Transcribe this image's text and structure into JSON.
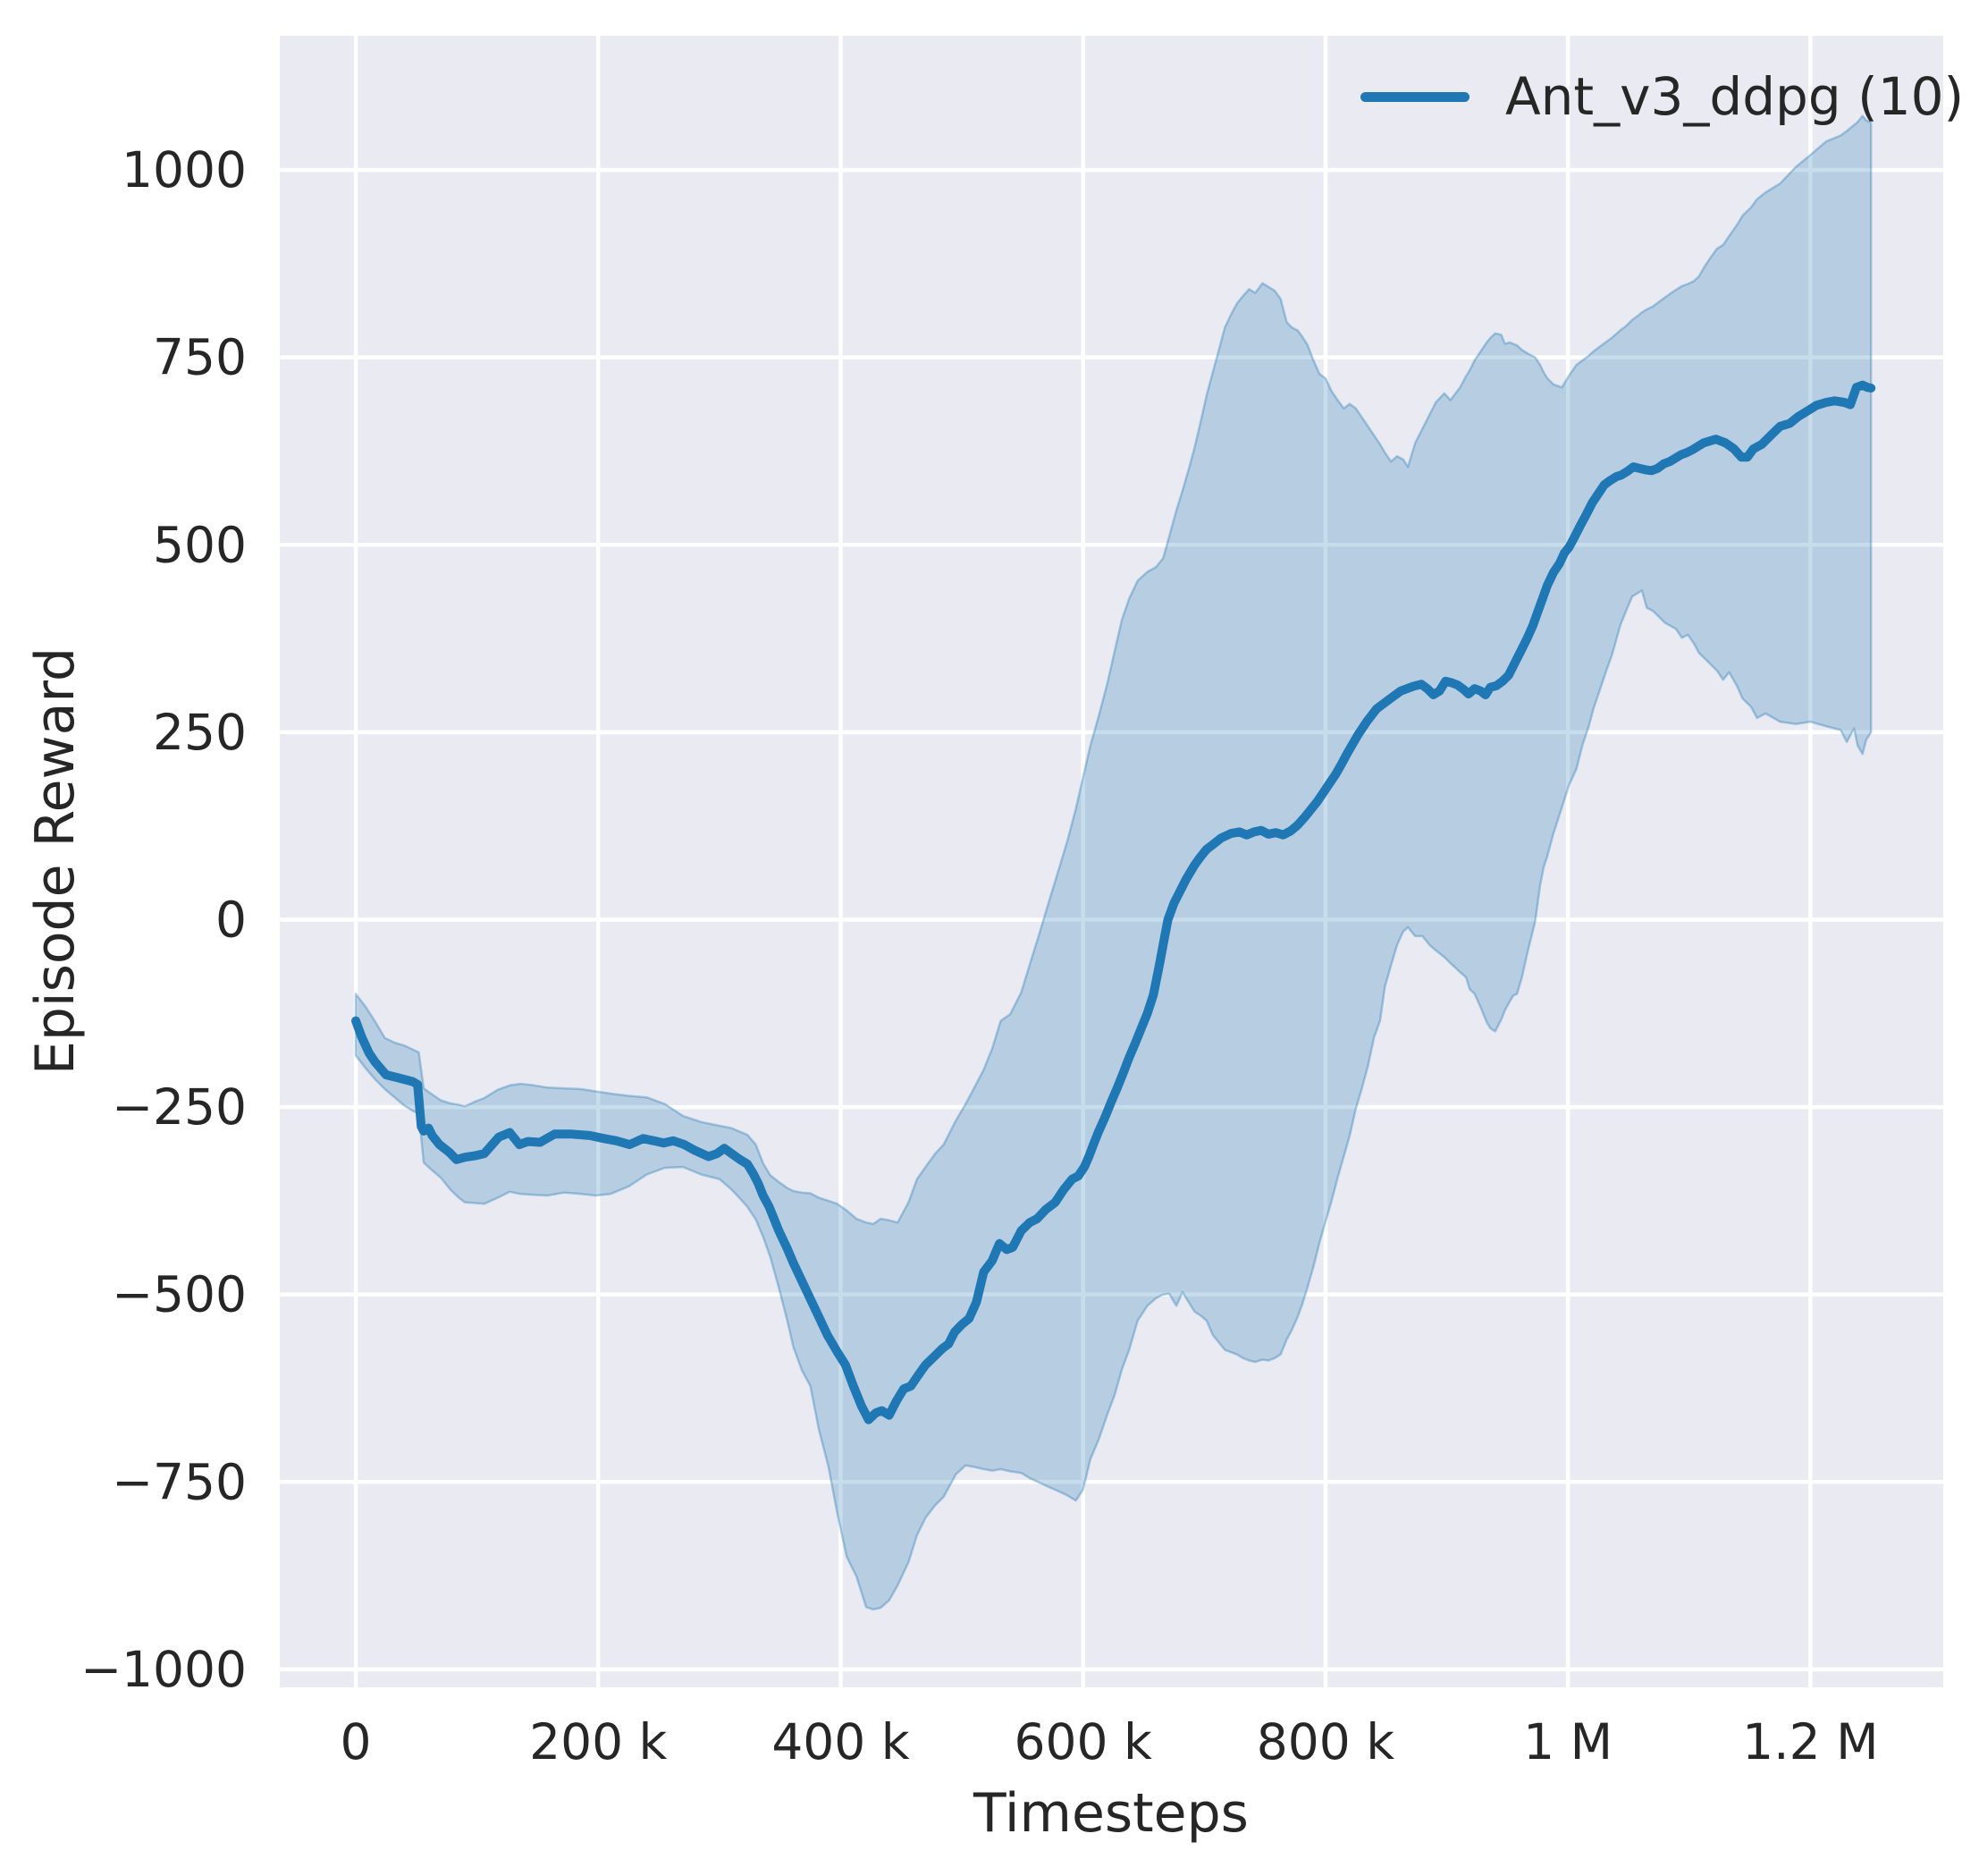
{
  "axes": {
    "xlabel": "Timesteps",
    "ylabel": "Episode Reward"
  },
  "legend": {
    "label": "Ant_v3_ddpg (10)"
  },
  "colors": {
    "figure_bg": "#ffffff",
    "plot_bg": "#eaeaf2",
    "grid": "#ffffff",
    "text": "#262626",
    "line": "#1f77b4",
    "band_fill": "rgba(31,119,180,0.25)",
    "band_edge": "rgba(31,119,180,0.35)"
  },
  "chart_data": {
    "type": "line",
    "title": "",
    "xlabel": "Timesteps",
    "ylabel": "Episode Reward",
    "grid": true,
    "legend_position": "upper right",
    "legend_entries": [
      "Ant_v3_ddpg (10)"
    ],
    "xlim": [
      -62700,
      1309600
    ],
    "ylim": [
      -1024,
      1179
    ],
    "x_ticks": [
      {
        "value": 0,
        "label": "0"
      },
      {
        "value": 200000,
        "label": "200 k"
      },
      {
        "value": 400000,
        "label": "400 k"
      },
      {
        "value": 600000,
        "label": "600 k"
      },
      {
        "value": 800000,
        "label": "800 k"
      },
      {
        "value": 1000000,
        "label": "1 M"
      },
      {
        "value": 1200000,
        "label": "1.2 M"
      }
    ],
    "y_ticks": [
      {
        "value": 1000,
        "label": "1000"
      },
      {
        "value": 750,
        "label": "750"
      },
      {
        "value": 500,
        "label": "500"
      },
      {
        "value": 250,
        "label": "250"
      },
      {
        "value": 0,
        "label": "0"
      },
      {
        "value": -250,
        "label": "−250"
      },
      {
        "value": -500,
        "label": "−500"
      },
      {
        "value": -750,
        "label": "−750"
      },
      {
        "value": -1000,
        "label": "−1000"
      }
    ],
    "series": [
      {
        "name": "Ant_v3_ddpg (10)",
        "color": "#1f77b4",
        "band_alpha": 0.25,
        "x_unit": "timesteps (stored in thousands)",
        "mean": {
          "x_k": [
            0,
            5,
            11,
            16,
            25,
            35,
            47,
            51,
            54,
            56,
            60,
            63,
            69,
            77,
            83,
            90,
            98,
            106,
            118,
            127,
            135,
            142,
            152,
            164,
            178,
            193,
            205,
            215,
            226,
            237,
            246,
            254,
            262,
            271,
            280,
            291,
            298,
            304,
            310,
            317,
            323,
            328,
            332,
            336,
            341,
            349,
            356,
            361,
            368,
            375,
            382,
            389,
            397,
            404,
            410,
            417,
            423,
            429,
            434,
            440,
            446,
            452,
            458,
            463,
            470,
            477,
            484,
            489,
            494,
            500,
            506,
            512,
            518,
            525,
            531,
            537,
            542,
            549,
            556,
            562,
            569,
            577,
            584,
            591,
            596,
            601,
            605,
            609,
            613,
            618,
            623,
            628,
            633,
            638,
            643,
            648,
            653,
            658,
            663,
            667,
            670,
            675,
            680,
            685,
            692,
            697,
            702,
            707,
            714,
            722,
            729,
            735,
            741,
            747,
            753,
            759,
            765,
            771,
            777,
            783,
            788,
            793,
            798,
            803,
            808,
            813,
            818,
            827,
            834,
            842,
            852,
            862,
            872,
            879,
            884,
            889,
            894,
            899,
            904,
            909,
            914,
            918,
            923,
            928,
            932,
            936,
            941,
            946,
            951,
            956,
            961,
            966,
            971,
            975,
            979,
            983,
            988,
            993,
            997,
            1001,
            1005,
            1010,
            1015,
            1020,
            1025,
            1030,
            1035,
            1040,
            1044,
            1049,
            1054,
            1059,
            1064,
            1069,
            1074,
            1079,
            1084,
            1088,
            1093,
            1098,
            1103,
            1112,
            1122,
            1130,
            1137,
            1143,
            1148,
            1153,
            1160,
            1168,
            1175,
            1183,
            1190,
            1198,
            1205,
            1213,
            1220,
            1228,
            1233,
            1238,
            1243,
            1247,
            1250
          ],
          "y": [
            -135,
            -157,
            -178,
            -190,
            -207,
            -211,
            -216,
            -220,
            -276,
            -282,
            -278,
            -288,
            -300,
            -310,
            -320,
            -317,
            -315,
            -312,
            -290,
            -284,
            -300,
            -296,
            -297,
            -286,
            -286,
            -288,
            -292,
            -295,
            -300,
            -292,
            -295,
            -298,
            -295,
            -300,
            -308,
            -316,
            -312,
            -305,
            -312,
            -320,
            -326,
            -339,
            -352,
            -368,
            -383,
            -415,
            -439,
            -458,
            -482,
            -506,
            -530,
            -554,
            -576,
            -594,
            -620,
            -648,
            -667,
            -658,
            -655,
            -661,
            -642,
            -626,
            -622,
            -610,
            -594,
            -583,
            -572,
            -566,
            -550,
            -540,
            -532,
            -510,
            -470,
            -455,
            -432,
            -440,
            -437,
            -415,
            -404,
            -399,
            -387,
            -377,
            -360,
            -346,
            -342,
            -330,
            -315,
            -298,
            -282,
            -264,
            -244,
            -225,
            -205,
            -184,
            -165,
            -145,
            -125,
            -100,
            -60,
            -25,
            0,
            22,
            38,
            54,
            73,
            84,
            94,
            100,
            109,
            115,
            117,
            113,
            117,
            119,
            114,
            116,
            113,
            118,
            126,
            137,
            147,
            157,
            169,
            181,
            193,
            207,
            222,
            247,
            264,
            281,
            293,
            305,
            311,
            314,
            308,
            300,
            305,
            318,
            316,
            313,
            307,
            301,
            308,
            305,
            300,
            310,
            312,
            318,
            326,
            342,
            358,
            374,
            392,
            410,
            428,
            446,
            463,
            475,
            489,
            497,
            509,
            525,
            540,
            556,
            568,
            580,
            586,
            591,
            593,
            598,
            604,
            602,
            600,
            599,
            602,
            608,
            611,
            615,
            620,
            623,
            627,
            636,
            641,
            636,
            628,
            617,
            617,
            628,
            634,
            647,
            658,
            662,
            671,
            679,
            686,
            690,
            692,
            690,
            687,
            710,
            713,
            710,
            709
          ]
        },
        "band": {
          "x_k": [
            0,
            8,
            16,
            24,
            32,
            40,
            48,
            52,
            56,
            62,
            70,
            78,
            85,
            90,
            98,
            106,
            117,
            127,
            136,
            147,
            158,
            172,
            186,
            198,
            210,
            225,
            240,
            255,
            270,
            285,
            300,
            310,
            317,
            323,
            330,
            336,
            342,
            349,
            356,
            361,
            368,
            375,
            382,
            390,
            397,
            405,
            413,
            421,
            427,
            433,
            440,
            447,
            456,
            463,
            470,
            478,
            485,
            495,
            503,
            510,
            518,
            525,
            532,
            540,
            549,
            556,
            564,
            572,
            579,
            587,
            594,
            600,
            606,
            613,
            620,
            626,
            632,
            638,
            645,
            653,
            660,
            666,
            671,
            677,
            682,
            687,
            692,
            697,
            702,
            707,
            712,
            717,
            722,
            727,
            732,
            737,
            742,
            748,
            753,
            758,
            763,
            768,
            772,
            777,
            781,
            785,
            790,
            795,
            800,
            805,
            810,
            815,
            820,
            825,
            830,
            835,
            840,
            845,
            849,
            854,
            859,
            864,
            868,
            874,
            880,
            886,
            891,
            898,
            903,
            911,
            916,
            919,
            923,
            928,
            933,
            936,
            940,
            945,
            948,
            952,
            955,
            958,
            962,
            967,
            973,
            977,
            980,
            983,
            988,
            995,
            1001,
            1007,
            1012,
            1017,
            1021,
            1026,
            1031,
            1036,
            1039,
            1043,
            1048,
            1053,
            1058,
            1061,
            1065,
            1070,
            1075,
            1080,
            1089,
            1094,
            1099,
            1104,
            1108,
            1113,
            1118,
            1123,
            1128,
            1133,
            1140,
            1144,
            1151,
            1156,
            1163,
            1175,
            1188,
            1200,
            1213,
            1225,
            1230,
            1236,
            1239,
            1243,
            1246,
            1250
          ],
          "lower": [
            -181,
            -198,
            -213,
            -226,
            -237,
            -248,
            -256,
            -258,
            -324,
            -333,
            -344,
            -360,
            -371,
            -377,
            -378,
            -379,
            -371,
            -363,
            -366,
            -367,
            -368,
            -364,
            -366,
            -368,
            -366,
            -356,
            -340,
            -331,
            -330,
            -340,
            -346,
            -360,
            -372,
            -383,
            -400,
            -423,
            -450,
            -491,
            -535,
            -570,
            -601,
            -622,
            -680,
            -730,
            -790,
            -850,
            -876,
            -917,
            -920,
            -918,
            -908,
            -888,
            -857,
            -821,
            -798,
            -781,
            -770,
            -740,
            -728,
            -730,
            -733,
            -735,
            -733,
            -736,
            -738,
            -745,
            -751,
            -757,
            -762,
            -768,
            -775,
            -760,
            -720,
            -693,
            -660,
            -634,
            -600,
            -574,
            -535,
            -515,
            -505,
            -500,
            -499,
            -515,
            -497,
            -510,
            -523,
            -528,
            -535,
            -554,
            -564,
            -574,
            -577,
            -580,
            -585,
            -588,
            -590,
            -587,
            -588,
            -585,
            -580,
            -560,
            -548,
            -530,
            -512,
            -491,
            -463,
            -431,
            -403,
            -375,
            -344,
            -316,
            -288,
            -252,
            -225,
            -195,
            -157,
            -135,
            -89,
            -61,
            -34,
            -16,
            -10,
            -22,
            -22,
            -34,
            -41,
            -50,
            -58,
            -70,
            -77,
            -93,
            -99,
            -117,
            -137,
            -145,
            -149,
            -133,
            -121,
            -109,
            -101,
            -99,
            -77,
            -41,
            -2,
            46,
            70,
            85,
            115,
            150,
            180,
            201,
            233,
            257,
            281,
            305,
            329,
            352,
            368,
            392,
            412,
            431,
            436,
            439,
            416,
            412,
            404,
            396,
            388,
            376,
            380,
            368,
            356,
            348,
            340,
            332,
            320,
            330,
            310,
            295,
            284,
            269,
            275,
            264,
            261,
            264,
            258,
            253,
            237,
            255,
            232,
            221,
            240,
            250
          ],
          "upper": [
            -99,
            -116,
            -136,
            -158,
            -164,
            -168,
            -174,
            -177,
            -225,
            -232,
            -241,
            -245,
            -247,
            -249,
            -243,
            -238,
            -227,
            -221,
            -219,
            -221,
            -224,
            -225,
            -226,
            -229,
            -232,
            -235,
            -237,
            -246,
            -262,
            -270,
            -275,
            -278,
            -283,
            -287,
            -300,
            -325,
            -341,
            -350,
            -358,
            -362,
            -364,
            -365,
            -371,
            -375,
            -379,
            -388,
            -399,
            -404,
            -406,
            -399,
            -401,
            -404,
            -377,
            -346,
            -330,
            -312,
            -300,
            -268,
            -246,
            -225,
            -200,
            -172,
            -135,
            -126,
            -97,
            -60,
            -18,
            25,
            62,
            105,
            148,
            190,
            232,
            272,
            315,
            358,
            400,
            428,
            452,
            464,
            470,
            482,
            511,
            546,
            572,
            600,
            630,
            664,
            700,
            730,
            760,
            790,
            807,
            822,
            832,
            841,
            836,
            849,
            844,
            839,
            828,
            797,
            790,
            786,
            777,
            767,
            746,
            728,
            722,
            705,
            693,
            682,
            688,
            682,
            670,
            658,
            646,
            634,
            623,
            611,
            618,
            614,
            604,
            636,
            655,
            674,
            690,
            702,
            693,
            710,
            725,
            733,
            746,
            758,
            770,
            776,
            782,
            780,
            768,
            770,
            768,
            766,
            760,
            755,
            750,
            740,
            730,
            722,
            714,
            710,
            726,
            740,
            746,
            752,
            758,
            764,
            770,
            776,
            780,
            786,
            792,
            800,
            806,
            810,
            814,
            818,
            824,
            830,
            840,
            845,
            848,
            852,
            858,
            872,
            884,
            895,
            900,
            912,
            928,
            939,
            950,
            961,
            970,
            982,
            1004,
            1020,
            1038,
            1046,
            1052,
            1060,
            1064,
            1072,
            1066,
            1063
          ]
        }
      }
    ]
  }
}
